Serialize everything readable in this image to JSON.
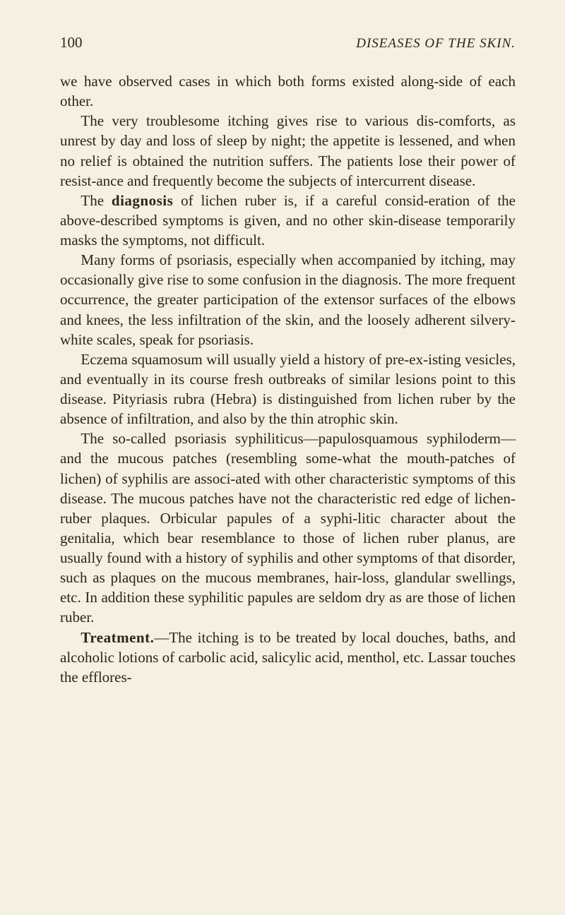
{
  "header": {
    "page_number": "100",
    "running_title": "DISEASES OF THE SKIN."
  },
  "paragraphs": {
    "p1": "we have observed cases in which both forms existed along-side of each other.",
    "p2": "The very troublesome itching gives rise to various dis-comforts, as unrest by day and loss of sleep by night; the appetite is lessened, and when no relief is obtained the nutrition suffers. The patients lose their power of resist-ance and frequently become the subjects of intercurrent disease.",
    "p3_pre": "The ",
    "p3_bold": "diagnosis",
    "p3_post": " of lichen ruber is, if a careful consid-eration of the above-described symptoms is given, and no other skin-disease temporarily masks the symptoms, not difficult.",
    "p4": "Many forms of psoriasis, especially when accompanied by itching, may occasionally give rise to some confusion in the diagnosis. The more frequent occurrence, the greater participation of the extensor surfaces of the elbows and knees, the less infiltration of the skin, and the loosely adherent silvery-white scales, speak for psoriasis.",
    "p5": "Eczema squamosum will usually yield a history of pre-ex-isting vesicles, and eventually in its course fresh outbreaks of similar lesions point to this disease. Pityriasis rubra (Hebra) is distinguished from lichen ruber by the absence of infiltration, and also by the thin atrophic skin.",
    "p6": "The so-called psoriasis syphiliticus—papulosquamous syphiloderm—and the mucous patches (resembling some-what the mouth-patches of lichen) of syphilis are associ-ated with other characteristic symptoms of this disease. The mucous patches have not the characteristic red edge of lichen-ruber plaques. Orbicular papules of a syphi-litic character about the genitalia, which bear resemblance to those of lichen ruber planus, are usually found with a history of syphilis and other symptoms of that disorder, such as plaques on the mucous membranes, hair-loss, glandular swellings, etc. In addition these syphilitic papules are seldom dry as are those of lichen ruber.",
    "p7_bold": "Treatment.",
    "p7_post": "—The itching is to be treated by local douches, baths, and alcoholic lotions of carbolic acid, salicylic acid, menthol, etc. Lassar touches the efflores-"
  },
  "colors": {
    "background": "#f5f0e1",
    "text": "#2a2518"
  },
  "typography": {
    "body_fontsize": 21,
    "header_fontsize": 19,
    "line_height": 1.34,
    "font_family": "Times New Roman"
  }
}
